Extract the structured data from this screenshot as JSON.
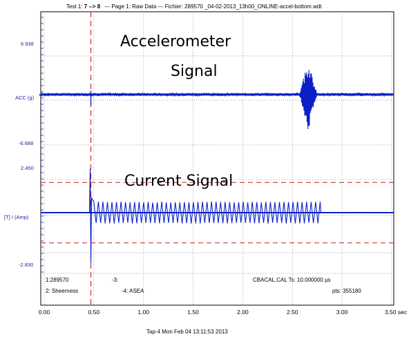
{
  "header": {
    "title_prefix": "Test 1: ",
    "title_range": "7 --> 8",
    "title_rest": "--- Page 1: Raw Data --- Fichier: 289570 _04-02-2013_13h00_ONLINE-accel-bottom.wdt"
  },
  "annotations": {
    "accel_line1": "Accelerometer",
    "accel_line2": "Signal",
    "current": "Current Signal"
  },
  "footer": {
    "left1": "1:289570",
    "left2": "2: Sheerness",
    "mid1": "-3:",
    "mid2": "-4: ASEA",
    "right1": "CBACAL.CAL   Ts: 10.000000 µs",
    "right2": "pts: 355180",
    "caption": "Tap-4   Mon Feb 04 13:11:53 2013"
  },
  "colors": {
    "signal": "#0a1fc8",
    "marker": "#c81e1e",
    "grid": "#8a8a8a",
    "axis_label": "#1f1fa0"
  },
  "chart_data": {
    "type": "line",
    "x_ticks": [
      "0.00",
      "0.50",
      "1.00",
      "1.50",
      "2.00",
      "2.50",
      "3.00",
      "3.50 sec"
    ],
    "x_tick_values": [
      0,
      0.5,
      1.0,
      1.5,
      2.0,
      2.5,
      3.0,
      3.5
    ],
    "xlim": [
      -0.05,
      3.5
    ],
    "cursor_x": 0.47,
    "grid": true,
    "channels": [
      {
        "label": "ACC (g)",
        "y_top_label": "6.938",
        "y_bottom_label": "-6.688",
        "ylim": [
          -6.688,
          6.938
        ],
        "baseline": 0,
        "events": [
          {
            "x": 0.47,
            "kind": "spike",
            "min": -1.5,
            "max": 0.5
          },
          {
            "x_start": 2.57,
            "x_end": 2.75,
            "kind": "burst",
            "peak": 5.0,
            "trough": -5.0
          }
        ]
      },
      {
        "label": "[T] I (Amp)",
        "y_top_label": "2.450",
        "y_bottom_label": "-2.830",
        "ylim": [
          -2.83,
          2.45
        ],
        "baseline": 0,
        "threshold_high": 1.65,
        "threshold_low": -1.65,
        "events": [
          {
            "x": 0.47,
            "kind": "transient",
            "max": 2.4,
            "min": -2.75
          },
          {
            "x_start": 0.5,
            "x_end": 2.78,
            "kind": "oscillation",
            "amplitude": 0.6,
            "cycles": 50
          }
        ]
      }
    ]
  }
}
